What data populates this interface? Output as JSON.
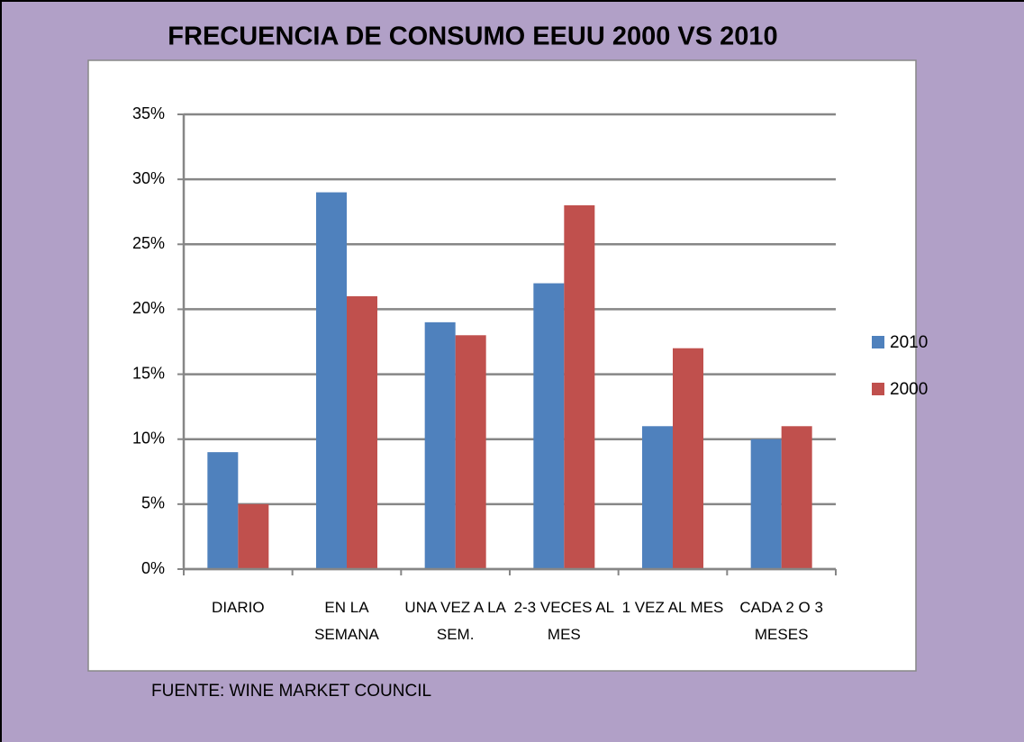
{
  "chart_data": {
    "type": "bar",
    "title": "FRECUENCIA DE CONSUMO EEUU 2000 VS 2010",
    "categories": [
      "DIARIO",
      "EN LA SEMANA",
      "UNA VEZ A LA SEM.",
      "2-3 VECES AL MES",
      "1 VEZ AL MES",
      "CADA 2 O 3 MESES"
    ],
    "series": [
      {
        "name": "2010",
        "color": "#4f81bd",
        "values": [
          9,
          29,
          19,
          22,
          11,
          10
        ]
      },
      {
        "name": "2000",
        "color": "#c0504d",
        "values": [
          5,
          21,
          18,
          28,
          17,
          11
        ]
      }
    ],
    "ylim": [
      0,
      35
    ],
    "yticks": [
      {
        "value": 0,
        "label": "0%"
      },
      {
        "value": 5,
        "label": "5%"
      },
      {
        "value": 10,
        "label": "10%"
      },
      {
        "value": 15,
        "label": "15%"
      },
      {
        "value": 20,
        "label": "20%"
      },
      {
        "value": 25,
        "label": "25%"
      },
      {
        "value": 30,
        "label": "30%"
      },
      {
        "value": 35,
        "label": "35%"
      }
    ],
    "grid": true,
    "legend": "right",
    "source": "FUENTE: WINE MARKET COUNCIL"
  }
}
